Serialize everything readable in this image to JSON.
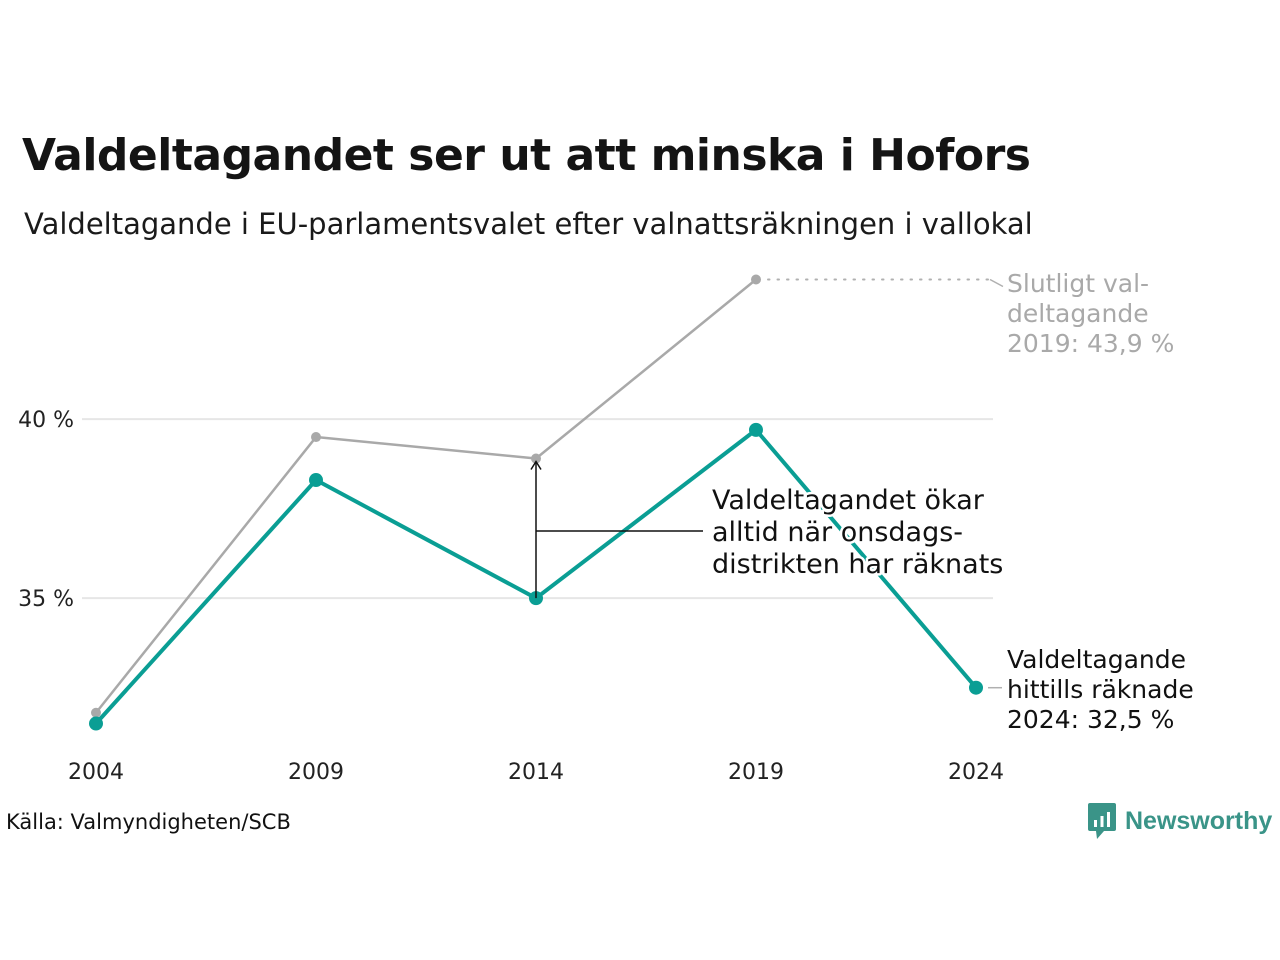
{
  "title": "Valdeltagandet ser ut att minska i Hofors",
  "subtitle": "Valdeltagande i EU-parlamentsvalet efter valnattsräkningen i vallokal",
  "source": "Källa: Valmyndigheten/SCB",
  "brand": {
    "name": "Newsworthy",
    "icon": "newsworthy-logo-icon"
  },
  "colors": {
    "current": "#0a9e94",
    "final": "#a9a9a9",
    "grid": "#e6e6e6"
  },
  "chart_data": {
    "type": "line",
    "x": [
      "2004",
      "2009",
      "2014",
      "2019",
      "2024"
    ],
    "ylim": [
      30.9,
      44.5
    ],
    "yticks": [
      35,
      40
    ],
    "ytick_labels": [
      "35 %",
      "40 %"
    ],
    "grid": true,
    "series": [
      {
        "key": "final",
        "values": [
          31.8,
          39.5,
          38.9,
          43.9,
          null
        ]
      },
      {
        "key": "current",
        "values": [
          31.5,
          38.3,
          35.0,
          39.7,
          32.5
        ]
      }
    ],
    "annotations": {
      "final_label": [
        "Slutligt val-",
        "deltagande",
        "2019: 43,9 %"
      ],
      "current_label": [
        "Valdeltagande",
        "hittills räknade",
        "2024: 32,5 %"
      ],
      "note": [
        "Valdeltagandet ökar",
        "alltid när onsdags-",
        "distrikten har räknats"
      ]
    }
  }
}
